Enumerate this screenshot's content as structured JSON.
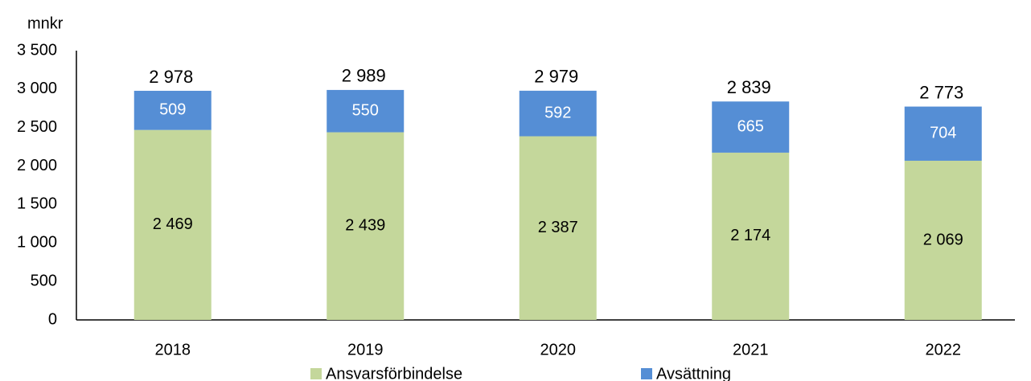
{
  "chart_data": {
    "type": "stacked-bar",
    "y_label": "mnkr",
    "categories": [
      "2018",
      "2019",
      "2020",
      "2021",
      "2022"
    ],
    "series": [
      {
        "name": "Ansvarsförbindelse",
        "color": "#c4d79b",
        "values": [
          2469,
          2439,
          2387,
          2174,
          2069
        ],
        "value_labels": [
          "2 469",
          "2 439",
          "2 387",
          "2 174",
          "2 069"
        ]
      },
      {
        "name": "Avsättning",
        "color": "#558ed5",
        "values": [
          509,
          550,
          592,
          665,
          704
        ]
      }
    ],
    "totals": {
      "values": [
        2978,
        2989,
        2979,
        2839,
        2773
      ],
      "value_labels": [
        "2 978",
        "2 989",
        "2 979",
        "2 839",
        "2 773"
      ]
    },
    "ylim": [
      0,
      3500
    ],
    "yticks": [
      0,
      500,
      {
        "value": 1000,
        "label": "1 000"
      },
      {
        "value": 1500,
        "label": "1 500"
      },
      {
        "value": 2000,
        "label": "2 000"
      },
      {
        "value": 2500,
        "label": "2 500"
      },
      {
        "value": 3000,
        "label": "3 000"
      },
      {
        "value": 3500,
        "label": "3 500"
      }
    ],
    "legend": "bottom"
  }
}
